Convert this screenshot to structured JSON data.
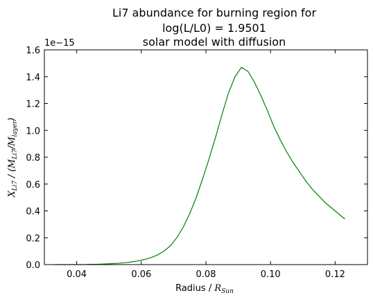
{
  "chart_data": {
    "type": "line",
    "title_lines": [
      "Li7 abundance for burning region for",
      "log(L/L0) = 1.9501",
      "solar model with diffusion"
    ],
    "xlabel_text": "Radius / ",
    "xlabel_math": "R",
    "xlabel_math_sub": "Sun",
    "ylabel": "X_Li7 / (M_Li7/M_layer)",
    "y_offset_label": "1e−15",
    "xlim": [
      0.03,
      0.13
    ],
    "ylim": [
      0.0,
      1.6
    ],
    "x_ticks": [
      0.04,
      0.06,
      0.08,
      0.1,
      0.12
    ],
    "x_tick_labels": [
      "0.04",
      "0.06",
      "0.08",
      "0.10",
      "0.12"
    ],
    "y_ticks": [
      0.0,
      0.2,
      0.4,
      0.6,
      0.8,
      1.0,
      1.2,
      1.4,
      1.6
    ],
    "y_tick_labels": [
      "0.0",
      "0.2",
      "0.4",
      "0.6",
      "0.8",
      "1.0",
      "1.2",
      "1.4",
      "1.6"
    ],
    "series": [
      {
        "name": "Li7 abundance",
        "color": "#008000",
        "x": [
          0.0333,
          0.035,
          0.037,
          0.039,
          0.041,
          0.043,
          0.045,
          0.047,
          0.049,
          0.051,
          0.053,
          0.055,
          0.057,
          0.059,
          0.061,
          0.063,
          0.065,
          0.067,
          0.069,
          0.071,
          0.073,
          0.075,
          0.077,
          0.079,
          0.081,
          0.083,
          0.085,
          0.087,
          0.089,
          0.091,
          0.093,
          0.095,
          0.097,
          0.099,
          0.101,
          0.103,
          0.105,
          0.107,
          0.109,
          0.111,
          0.113,
          0.115,
          0.117,
          0.119,
          0.121,
          0.123
        ],
        "values": [
          0.0,
          0.0,
          0.0,
          0.0,
          0.0,
          0.001,
          0.002,
          0.003,
          0.005,
          0.007,
          0.01,
          0.014,
          0.02,
          0.028,
          0.038,
          0.052,
          0.072,
          0.1,
          0.14,
          0.2,
          0.28,
          0.38,
          0.5,
          0.64,
          0.79,
          0.95,
          1.12,
          1.28,
          1.4,
          1.47,
          1.44,
          1.36,
          1.26,
          1.15,
          1.03,
          0.93,
          0.84,
          0.76,
          0.69,
          0.62,
          0.56,
          0.51,
          0.46,
          0.42,
          0.38,
          0.34
        ]
      }
    ]
  }
}
